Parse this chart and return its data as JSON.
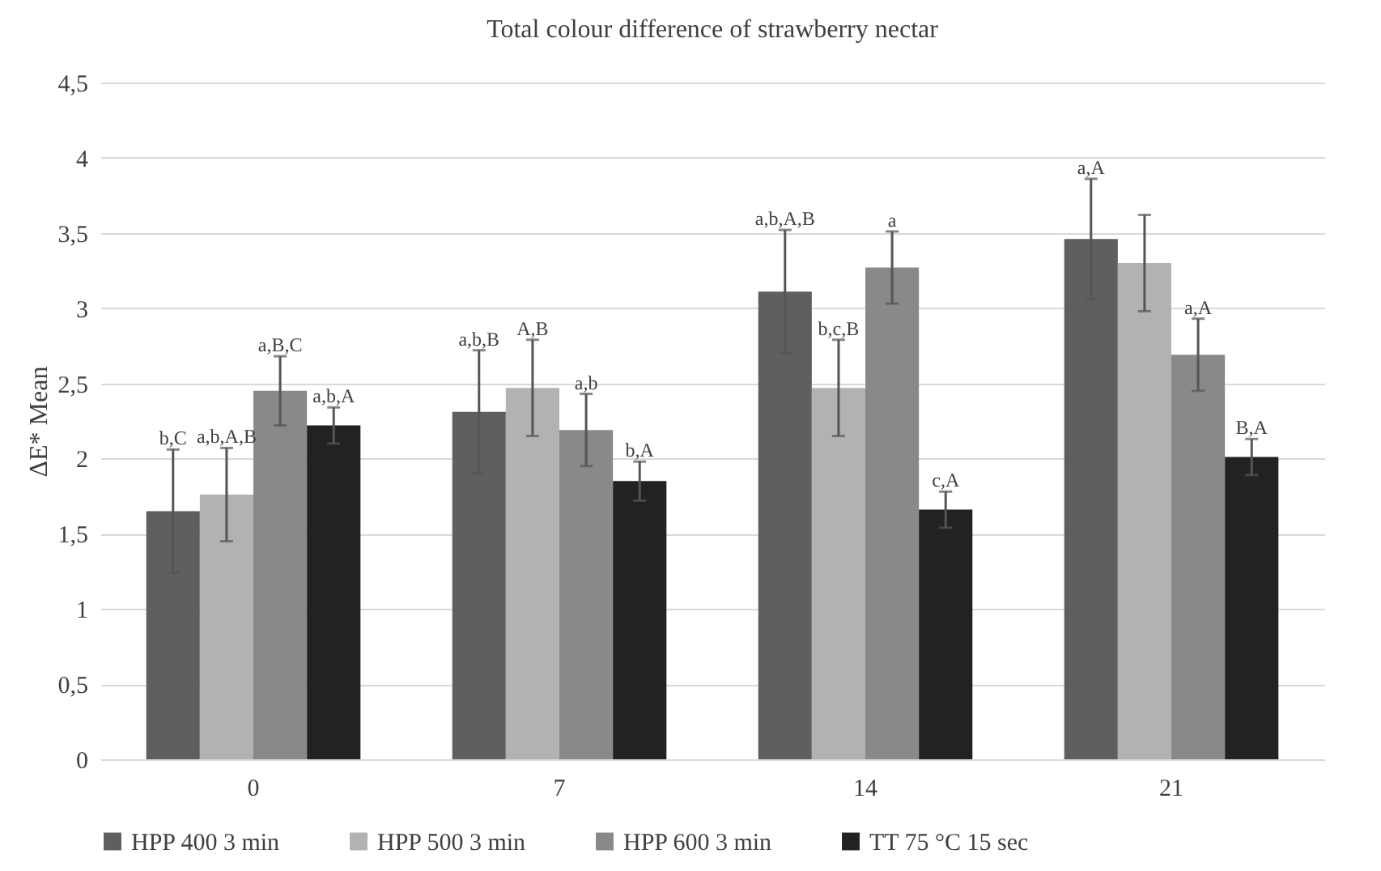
{
  "chart_data": {
    "type": "bar",
    "title": "Total colour difference of strawberry nectar",
    "ylabel": "ΔE* Mean",
    "categories": [
      "0",
      "7",
      "14",
      "21"
    ],
    "series": [
      {
        "name": "HPP 400 3 min",
        "color": "#5f5f5f",
        "values": [
          1.65,
          2.31,
          3.11,
          3.46
        ],
        "errors": [
          0.41,
          0.41,
          0.41,
          0.4
        ],
        "value_labels": [
          "b,C",
          "a,b,B",
          "a,b,A,B",
          "a,A"
        ]
      },
      {
        "name": "HPP 500 3 min",
        "color": "#b2b2b2",
        "values": [
          1.76,
          2.47,
          2.47,
          3.3
        ],
        "errors": [
          0.31,
          0.32,
          0.32,
          0.32
        ],
        "value_labels": [
          "a,b,A,B",
          "A,B",
          "b,c,B",
          null
        ]
      },
      {
        "name": "HPP 600 3 min",
        "color": "#898989",
        "values": [
          2.45,
          2.19,
          3.27,
          2.69
        ],
        "errors": [
          0.23,
          0.24,
          0.24,
          0.24
        ],
        "value_labels": [
          "a,B,C",
          "a,b",
          "a",
          "a,A"
        ]
      },
      {
        "name": "TT 75 °C 15 sec",
        "color": "#222222",
        "values": [
          2.22,
          1.85,
          1.66,
          2.01
        ],
        "errors": [
          0.12,
          0.13,
          0.12,
          0.12
        ],
        "value_labels": [
          "a,b,A",
          "b,A",
          "c,A",
          "B,A"
        ]
      }
    ],
    "ylim": [
      0,
      4.5
    ],
    "yticks": [
      0,
      {
        "value": 0.5,
        "label": "0,5"
      },
      1,
      {
        "value": 1.5,
        "label": "1,5"
      },
      2,
      {
        "value": 2.5,
        "label": "2,5"
      },
      3,
      {
        "value": 3.5,
        "label": "3,5"
      },
      4,
      {
        "value": 4.5,
        "label": "4,5"
      }
    ],
    "grid": "y",
    "legend": "bottom"
  }
}
